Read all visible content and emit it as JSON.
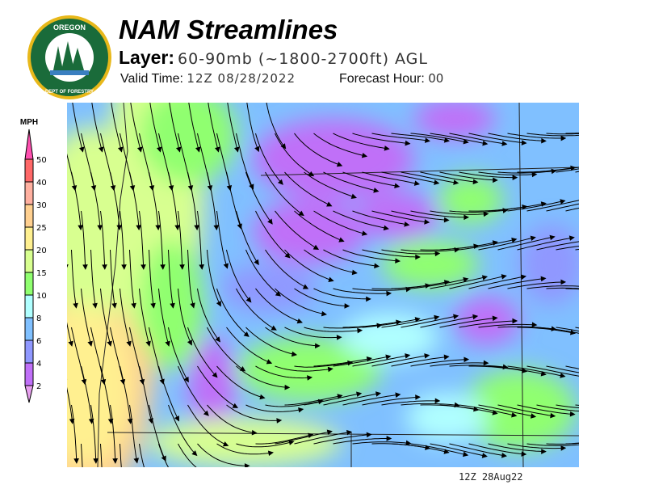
{
  "header": {
    "title": "NAM Streamlines",
    "layer_label": "Layer:",
    "layer_value": "60-90mb (~1800-2700ft) AGL",
    "valid_label": "Valid Time:",
    "valid_value": "12Z 08/28/2022",
    "forecast_label": "Forecast Hour:",
    "forecast_value": "00"
  },
  "logo": {
    "text": "OREGON DEPARTMENT OF FORESTRY",
    "colors": {
      "ring": "#1a6b3a",
      "gold": "#e8b81a"
    }
  },
  "legend": {
    "unit": "MPH",
    "ticks": [
      "2",
      "4",
      "6",
      "8",
      "10",
      "15",
      "20",
      "25",
      "30",
      "40",
      "50"
    ],
    "colors": [
      "#e8a0f0",
      "#c070f8",
      "#9098ff",
      "#80c0ff",
      "#b0ffff",
      "#90ff70",
      "#d8ff90",
      "#fff090",
      "#ffd090",
      "#ffb0a0",
      "#ff6868",
      "#ff50b0"
    ]
  },
  "map": {
    "colors": {
      "calm": "#c070f8",
      "light": "#9098ff",
      "blue": "#80c0ff",
      "cyan": "#b0ffff",
      "green": "#90ff70",
      "lime": "#d8ff90",
      "yellow": "#fff090",
      "orange": "#ffd090"
    }
  },
  "footer": {
    "stamp": "12Z 28Aug22"
  }
}
